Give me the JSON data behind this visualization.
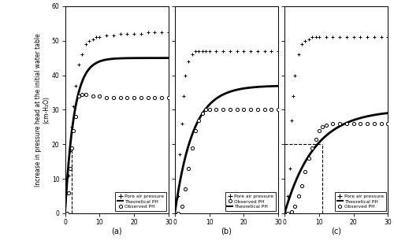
{
  "xlim": [
    0,
    30
  ],
  "ylim": [
    0,
    60
  ],
  "yticks": [
    0,
    10,
    20,
    30,
    40,
    50,
    60
  ],
  "xticks": [
    0,
    10,
    20,
    30
  ],
  "ylabel": "Increase in pressure head at the initial water table\n(cm-H₂O)",
  "panel_labels": [
    "(a)",
    "(b)",
    "(c)"
  ],
  "panel_a": {
    "pore_air_x": [
      0.5,
      1.0,
      1.5,
      2.0,
      2.5,
      3.0,
      4.0,
      5.0,
      6.0,
      7.0,
      8.0,
      9.0,
      10.0,
      12.0,
      14.0,
      16.0,
      18.0,
      20.0,
      22.0,
      24.0,
      26.0,
      28.0,
      30.0
    ],
    "pore_air_y": [
      6.0,
      11.0,
      18.0,
      25.0,
      31.0,
      37.0,
      43.0,
      46.0,
      49.0,
      50.0,
      50.5,
      51.0,
      51.0,
      51.5,
      51.5,
      52.0,
      52.0,
      52.0,
      52.0,
      52.5,
      52.5,
      52.5,
      52.5
    ],
    "observed_x": [
      0.5,
      1.0,
      1.5,
      2.0,
      2.5,
      3.0,
      4.0,
      5.0,
      6.0,
      8.0,
      10.0,
      12.0,
      14.0,
      16.0,
      18.0,
      20.0,
      22.0,
      24.0,
      26.0,
      28.0,
      30.0
    ],
    "observed_y": [
      0.0,
      6.0,
      13.0,
      19.0,
      24.0,
      28.0,
      34.0,
      34.5,
      34.5,
      34.0,
      34.0,
      33.5,
      33.5,
      33.5,
      33.5,
      33.5,
      33.5,
      33.5,
      33.5,
      33.5,
      33.5
    ],
    "theoretical_plateau": 45.0,
    "theoretical_k": 0.38,
    "legend_order": [
      "pore",
      "theoretical",
      "observed"
    ],
    "dashed_x": 2.0,
    "dashed_ymax": 19.0
  },
  "panel_b": {
    "pore_air_x": [
      0.5,
      1.0,
      1.5,
      2.0,
      2.5,
      3.0,
      4.0,
      5.0,
      6.0,
      7.0,
      8.0,
      9.0,
      10.0,
      12.0,
      14.0,
      16.0,
      18.0,
      20.0,
      22.0,
      24.0,
      26.0,
      28.0,
      30.0
    ],
    "pore_air_y": [
      0.0,
      5.0,
      17.0,
      26.0,
      34.0,
      40.0,
      44.0,
      46.0,
      47.0,
      47.0,
      47.0,
      47.0,
      47.0,
      47.0,
      47.0,
      47.0,
      47.0,
      47.0,
      47.0,
      47.0,
      47.0,
      47.0,
      47.0
    ],
    "observed_x": [
      1.0,
      2.0,
      3.0,
      4.0,
      5.0,
      6.0,
      7.0,
      8.0,
      9.0,
      10.0,
      12.0,
      14.0,
      16.0,
      18.0,
      20.0,
      22.0,
      24.0,
      26.0,
      28.0,
      30.0
    ],
    "observed_y": [
      0.0,
      2.0,
      7.0,
      13.0,
      19.0,
      24.0,
      27.0,
      29.0,
      30.0,
      30.0,
      30.0,
      30.0,
      30.0,
      30.0,
      30.0,
      30.0,
      30.0,
      30.0,
      30.0,
      30.0
    ],
    "theoretical_plateau": 37.0,
    "theoretical_k": 0.19,
    "legend_order": [
      "pore",
      "observed",
      "theoretical"
    ]
  },
  "panel_c": {
    "pore_air_x": [
      0.5,
      1.0,
      1.5,
      2.0,
      2.5,
      3.0,
      4.0,
      5.0,
      6.0,
      7.0,
      8.0,
      9.0,
      10.0,
      12.0,
      14.0,
      16.0,
      18.0,
      20.0,
      22.0,
      24.0,
      26.0,
      28.0,
      30.0
    ],
    "pore_air_y": [
      0.0,
      5.0,
      13.0,
      27.0,
      34.0,
      40.0,
      46.0,
      49.0,
      50.0,
      50.5,
      51.0,
      51.0,
      51.0,
      51.0,
      51.0,
      51.0,
      51.0,
      51.0,
      51.0,
      51.0,
      51.0,
      51.0,
      51.0
    ],
    "observed_x": [
      1.0,
      2.0,
      3.0,
      4.0,
      5.0,
      6.0,
      7.0,
      8.0,
      9.0,
      10.0,
      11.0,
      12.0,
      14.0,
      16.0,
      18.0,
      20.0,
      22.0,
      24.0,
      26.0,
      28.0,
      30.0
    ],
    "observed_y": [
      0.0,
      0.5,
      2.0,
      5.0,
      8.0,
      12.0,
      16.0,
      19.0,
      21.5,
      24.0,
      25.0,
      25.5,
      26.0,
      26.0,
      26.0,
      26.0,
      26.0,
      26.0,
      26.0,
      26.0,
      26.0
    ],
    "theoretical_plateau": 30.0,
    "theoretical_k": 0.115,
    "legend_order": [
      "pore",
      "theoretical",
      "observed"
    ],
    "dashed_x": 11.0,
    "dashed_y": 20.0
  }
}
